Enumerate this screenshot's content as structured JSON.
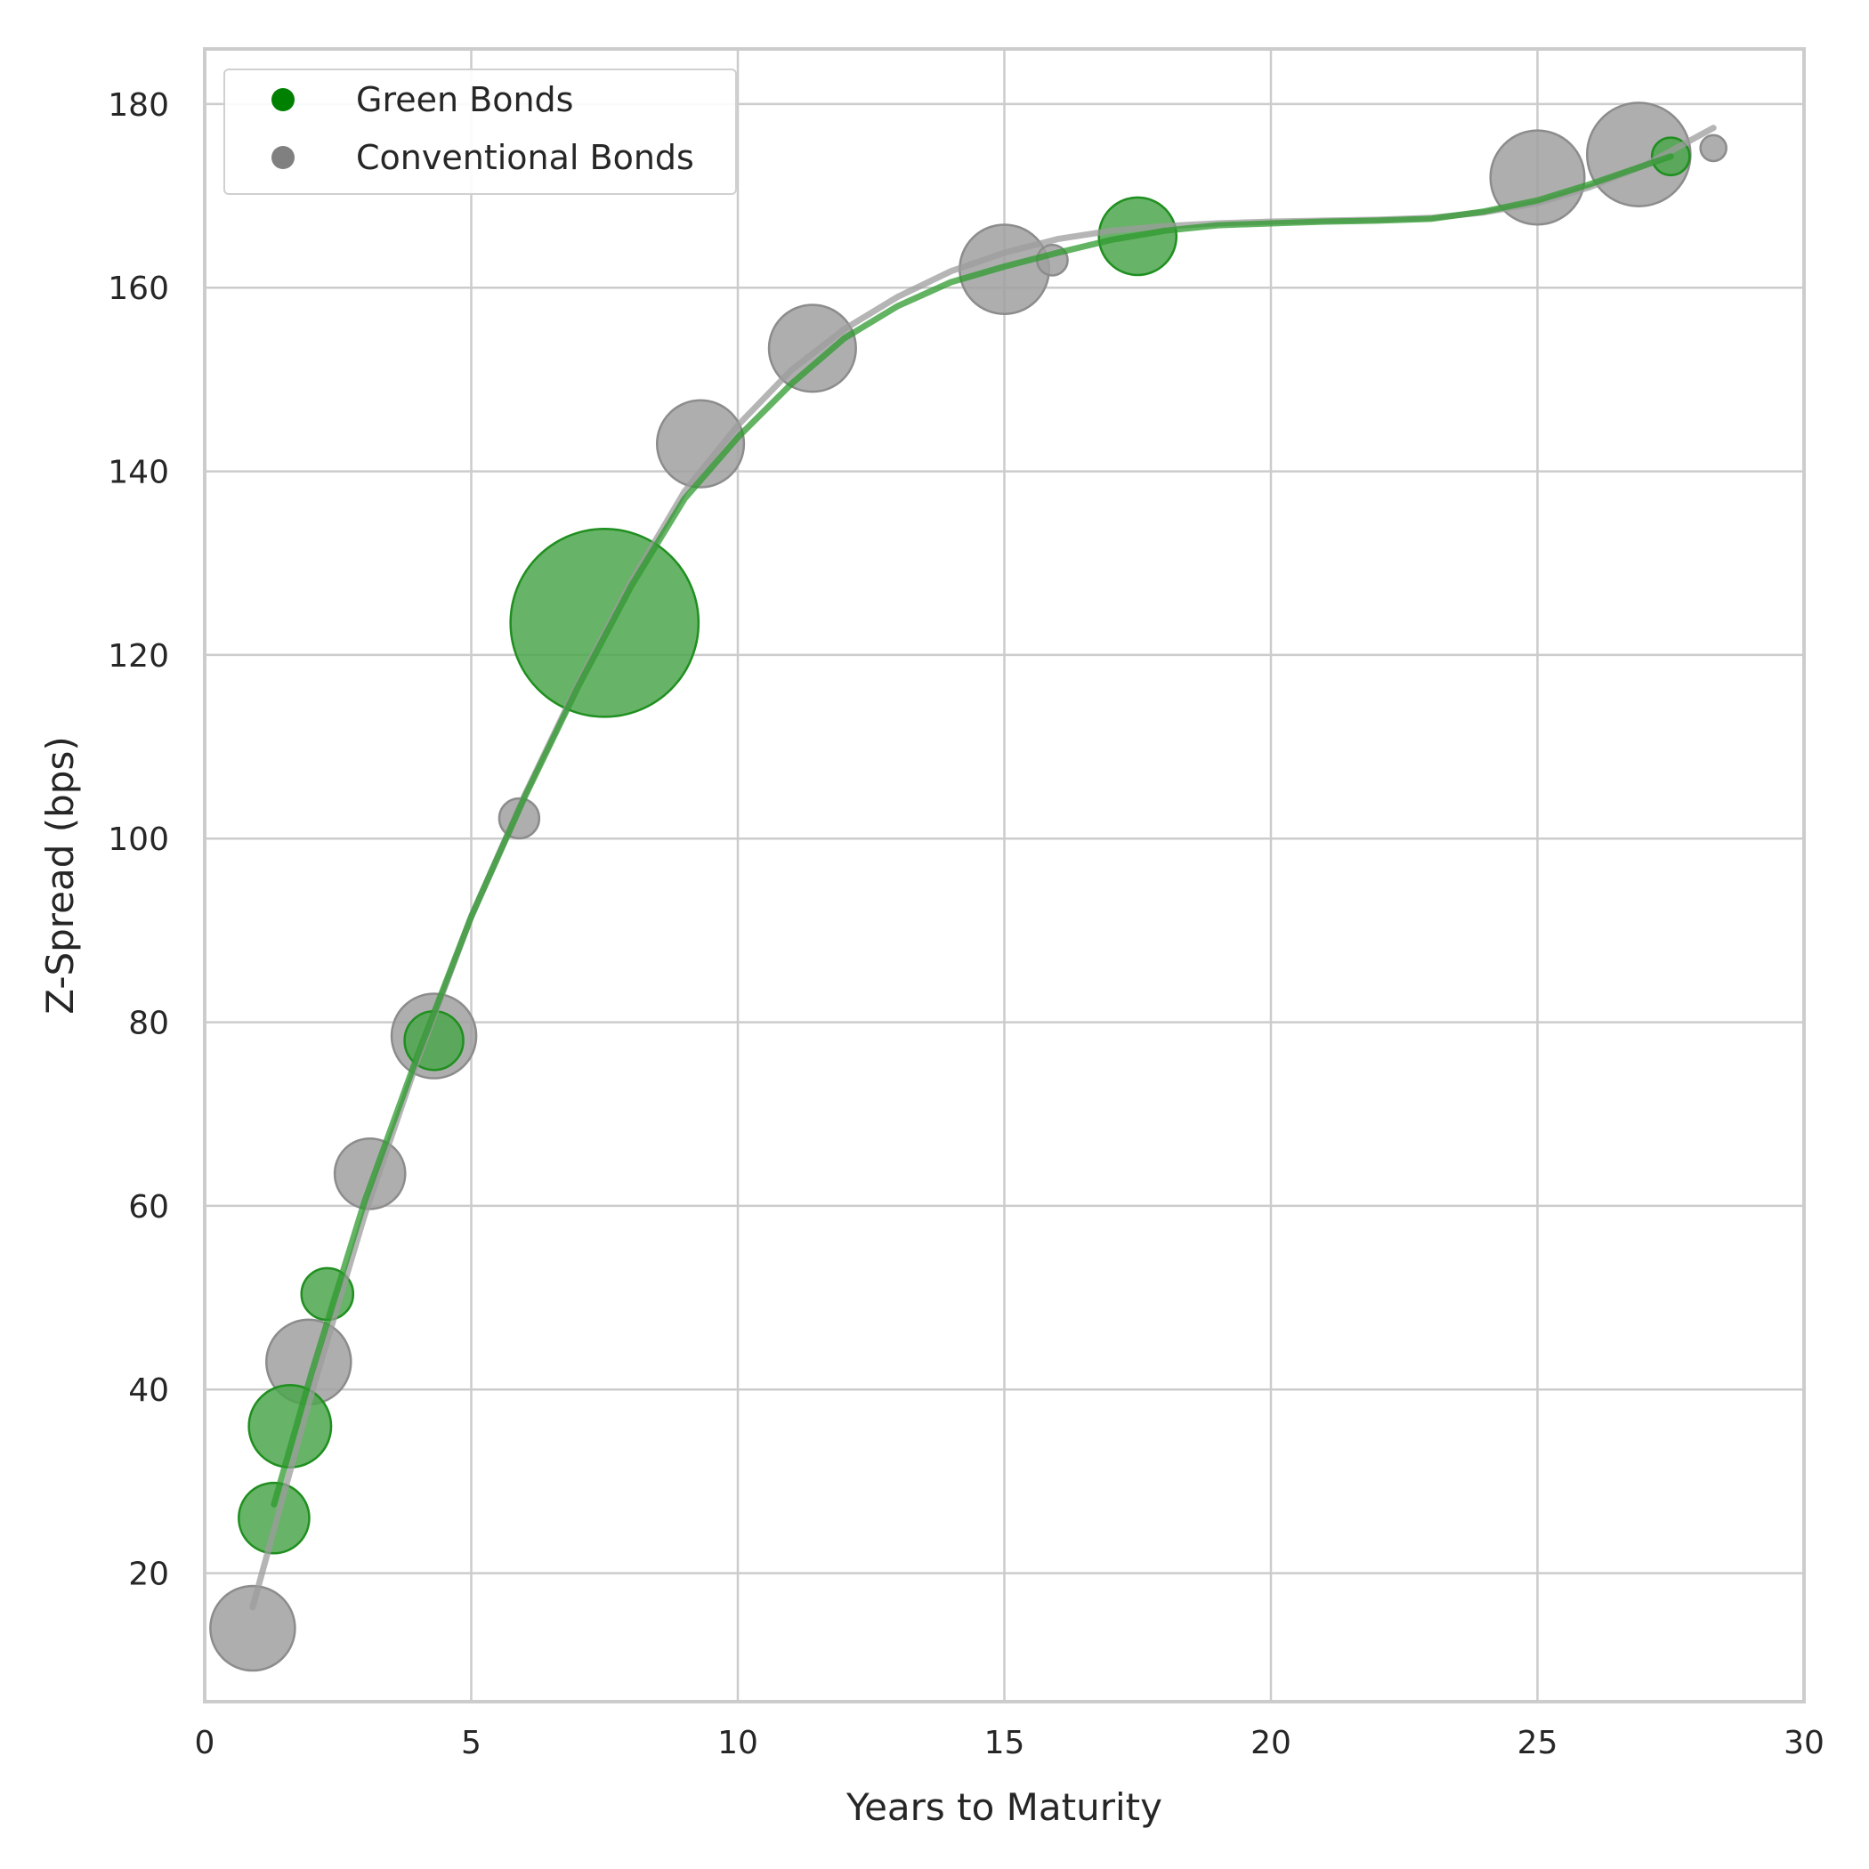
{
  "chart_data": {
    "type": "scatter",
    "title": "",
    "xlabel": "Years to Maturity",
    "ylabel": "Z-Spread (bps)",
    "xlim": [
      0,
      30
    ],
    "ylim": [
      6,
      186
    ],
    "xticks": [
      0,
      5,
      10,
      15,
      20,
      25,
      30
    ],
    "yticks": [
      20,
      40,
      60,
      80,
      100,
      120,
      140,
      160,
      180
    ],
    "grid": true,
    "legend_position": "top-left",
    "colors": {
      "green_fill": "#4ca64c",
      "green_edge": "#1f8f1f",
      "green_line": "#2e9a2e",
      "green_marker": "#008000",
      "gray_fill": "#a0a0a0",
      "gray_edge": "#8c8c8c",
      "gray_line": "#9c9c9c",
      "gray_marker": "#808080"
    },
    "series": [
      {
        "name": "Green Bonds",
        "points": [
          {
            "x": 1.3,
            "y": 26,
            "size": 30
          },
          {
            "x": 1.6,
            "y": 36,
            "size": 35
          },
          {
            "x": 2.3,
            "y": 50.4,
            "size": 22
          },
          {
            "x": 4.3,
            "y": 78,
            "size": 25
          },
          {
            "x": 7.5,
            "y": 123.5,
            "size": 80
          },
          {
            "x": 17.5,
            "y": 165.6,
            "size": 33
          },
          {
            "x": 27.5,
            "y": 174.3,
            "size": 16
          }
        ],
        "fit_curve": [
          [
            1.3,
            27.5
          ],
          [
            2,
            41.7
          ],
          [
            3,
            60.5
          ],
          [
            4,
            76.5
          ],
          [
            5,
            91.5
          ],
          [
            6,
            104.5
          ],
          [
            7,
            116.5
          ],
          [
            8,
            127.5
          ],
          [
            9,
            137
          ],
          [
            10,
            143.7
          ],
          [
            11,
            149.5
          ],
          [
            12,
            154.5
          ],
          [
            13,
            158
          ],
          [
            14,
            160.6
          ],
          [
            15,
            162.3
          ],
          [
            16,
            163.8
          ],
          [
            17,
            165.2
          ],
          [
            18,
            166.2
          ],
          [
            19,
            166.8
          ],
          [
            20,
            167
          ],
          [
            21,
            167.2
          ],
          [
            22,
            167.3
          ],
          [
            23,
            167.5
          ],
          [
            24,
            168.3
          ],
          [
            25,
            169.5
          ],
          [
            26,
            171.3
          ],
          [
            27,
            173.3
          ],
          [
            27.5,
            174.3
          ]
        ]
      },
      {
        "name": "Conventional Bonds",
        "points": [
          {
            "x": 0.9,
            "y": 14,
            "size": 36
          },
          {
            "x": 1.95,
            "y": 43,
            "size": 36
          },
          {
            "x": 3.1,
            "y": 63.5,
            "size": 30
          },
          {
            "x": 4.3,
            "y": 78.5,
            "size": 36
          },
          {
            "x": 5.9,
            "y": 102.2,
            "size": 17
          },
          {
            "x": 9.3,
            "y": 143,
            "size": 37
          },
          {
            "x": 11.4,
            "y": 153.4,
            "size": 37
          },
          {
            "x": 15,
            "y": 162,
            "size": 38
          },
          {
            "x": 15.9,
            "y": 163,
            "size": 13
          },
          {
            "x": 25,
            "y": 172,
            "size": 40
          },
          {
            "x": 26.9,
            "y": 174.5,
            "size": 44
          },
          {
            "x": 28.3,
            "y": 175.2,
            "size": 11
          }
        ],
        "fit_curve": [
          [
            0.9,
            16.3
          ],
          [
            2,
            39.5
          ],
          [
            3,
            59
          ],
          [
            4,
            76
          ],
          [
            5,
            91.5
          ],
          [
            6,
            104.7
          ],
          [
            7,
            116.8
          ],
          [
            8,
            128
          ],
          [
            9,
            137.8
          ],
          [
            10,
            145
          ],
          [
            11,
            151
          ],
          [
            12,
            155.5
          ],
          [
            13,
            159
          ],
          [
            14,
            161.8
          ],
          [
            15,
            163.8
          ],
          [
            16,
            165.3
          ],
          [
            17,
            166.2
          ],
          [
            18,
            166.7
          ],
          [
            19,
            167
          ],
          [
            20,
            167.2
          ],
          [
            21,
            167.3
          ],
          [
            22,
            167.4
          ],
          [
            23,
            167.6
          ],
          [
            24,
            168.2
          ],
          [
            25,
            169.2
          ],
          [
            26,
            171
          ],
          [
            27,
            173.3
          ],
          [
            28.3,
            177.4
          ]
        ]
      }
    ]
  }
}
